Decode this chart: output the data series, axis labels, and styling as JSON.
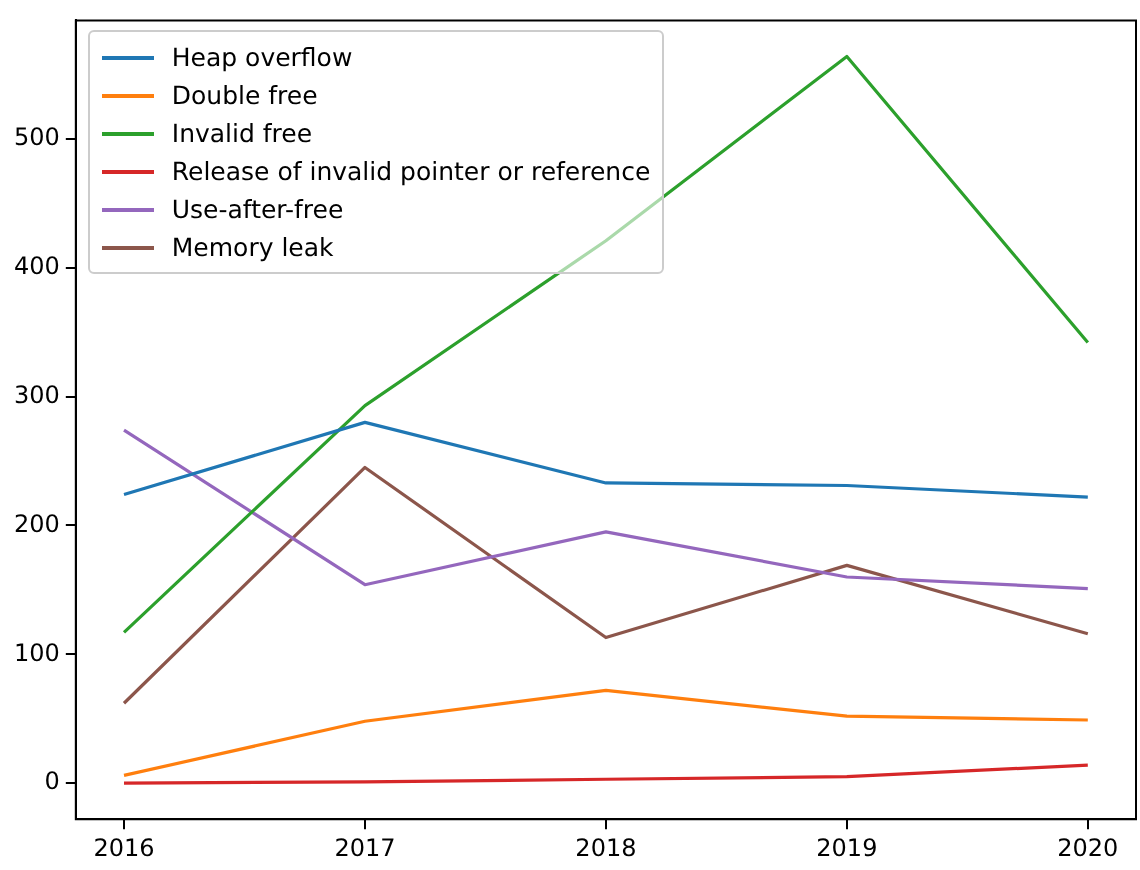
{
  "chart_data": {
    "type": "line",
    "x": [
      2016,
      2017,
      2018,
      2019,
      2020
    ],
    "xlim": [
      2015.8,
      2020.2
    ],
    "xticks": [
      2016,
      2017,
      2018,
      2019,
      2020
    ],
    "ylim": [
      -28,
      592
    ],
    "yticks": [
      0,
      100,
      200,
      300,
      400,
      500
    ],
    "grid": false,
    "legend": "top left",
    "marker": "none",
    "line_style": "solid",
    "series": [
      {
        "name": "Heap overflow",
        "color": "#1f77b4",
        "values": [
          224,
          280,
          233,
          231,
          222
        ]
      },
      {
        "name": "Double free",
        "color": "#ff7f0e",
        "values": [
          6,
          48,
          72,
          52,
          49
        ]
      },
      {
        "name": "Invalid free",
        "color": "#2ca02c",
        "values": [
          117,
          293,
          421,
          564,
          342
        ]
      },
      {
        "name": "Release of invalid pointer or reference",
        "color": "#d62728",
        "values": [
          0,
          1,
          3,
          5,
          14
        ]
      },
      {
        "name": "Use-after-free",
        "color": "#9467bd",
        "values": [
          274,
          154,
          195,
          160,
          151
        ]
      },
      {
        "name": "Memory leak",
        "color": "#8c564b",
        "values": [
          62,
          245,
          113,
          169,
          116
        ]
      }
    ]
  }
}
